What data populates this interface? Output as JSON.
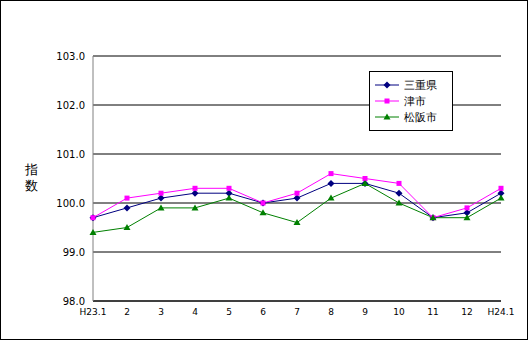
{
  "chart_data": {
    "type": "line",
    "y_label": "指数",
    "categories": [
      "H23.1",
      "2",
      "3",
      "4",
      "5",
      "6",
      "7",
      "8",
      "9",
      "10",
      "11",
      "12",
      "H24.1"
    ],
    "series": [
      {
        "name": "三重県",
        "color": "#000080",
        "marker": "diamond",
        "values": [
          99.7,
          99.9,
          100.1,
          100.2,
          100.2,
          100.0,
          100.1,
          100.4,
          100.4,
          100.2,
          99.7,
          99.8,
          100.2
        ]
      },
      {
        "name": "津市",
        "color": "#ff00ff",
        "marker": "square",
        "values": [
          99.7,
          100.1,
          100.2,
          100.3,
          100.3,
          100.0,
          100.2,
          100.6,
          100.5,
          100.4,
          99.7,
          99.9,
          100.3
        ]
      },
      {
        "name": "松阪市",
        "color": "#008000",
        "marker": "triangle",
        "values": [
          99.4,
          99.5,
          99.9,
          99.9,
          100.1,
          99.8,
          99.6,
          100.1,
          100.4,
          100.0,
          99.7,
          99.7,
          100.1
        ]
      }
    ],
    "ylim": [
      98,
      103
    ],
    "yticks": [
      {
        "value": 98,
        "label": "98.0"
      },
      {
        "value": 99,
        "label": "99.0"
      },
      {
        "value": 100,
        "label": "100.0"
      },
      {
        "value": 101,
        "label": "101.0"
      },
      {
        "value": 102,
        "label": "102.0"
      },
      {
        "value": 103,
        "label": "103.0"
      }
    ],
    "grid": true,
    "legend": "upper right"
  }
}
